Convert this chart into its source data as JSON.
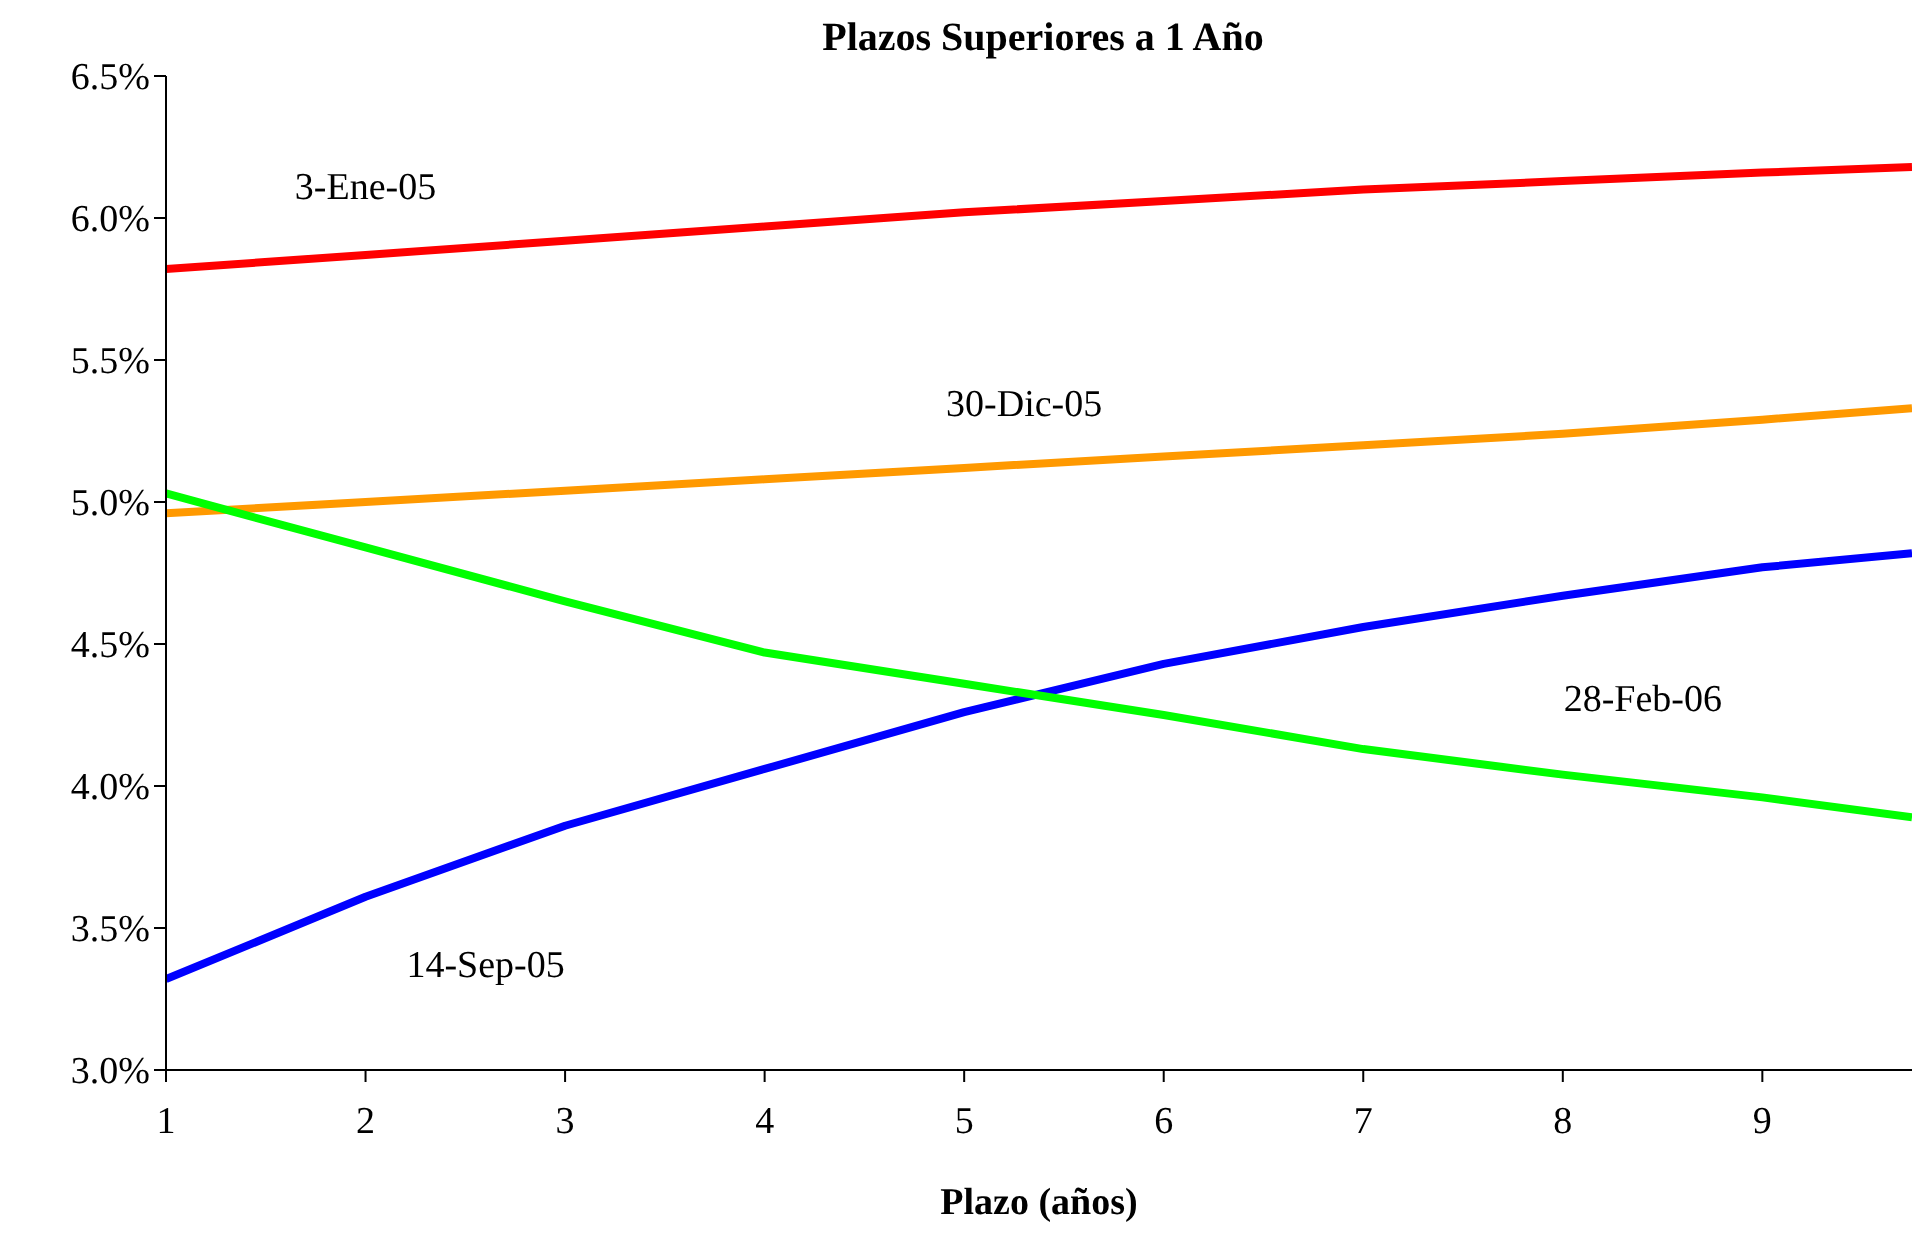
{
  "chart_data": {
    "type": "line",
    "title": "Plazos Superiores a 1 Año",
    "xlabel": "Plazo (años)",
    "x": [
      1,
      2,
      3,
      4,
      5,
      6,
      7,
      8,
      9,
      9.75
    ],
    "series": [
      {
        "name": "3-Ene-05",
        "color": "#ff0000",
        "values": [
          5.82,
          5.87,
          5.92,
          5.97,
          6.02,
          6.06,
          6.1,
          6.13,
          6.16,
          6.18
        ]
      },
      {
        "name": "30-Dic-05",
        "color": "#ff9900",
        "values": [
          4.96,
          5.0,
          5.04,
          5.08,
          5.12,
          5.16,
          5.2,
          5.24,
          5.29,
          5.33
        ]
      },
      {
        "name": "14-Sep-05",
        "color": "#0000ff",
        "values": [
          3.32,
          3.61,
          3.86,
          4.06,
          4.26,
          4.43,
          4.56,
          4.67,
          4.77,
          4.82
        ]
      },
      {
        "name": "28-Feb-06",
        "color": "#00ff00",
        "values": [
          5.03,
          4.84,
          4.65,
          4.47,
          4.36,
          4.25,
          4.13,
          4.04,
          3.96,
          3.89
        ]
      }
    ],
    "xlim": [
      1,
      9.75
    ],
    "xticks": [
      1,
      2,
      3,
      4,
      5,
      6,
      7,
      8,
      9
    ],
    "ylim": [
      3,
      6.5
    ],
    "yticks": [
      {
        "value": 3,
        "label": "3.0%"
      },
      {
        "value": 3.5,
        "label": "3.5%"
      },
      {
        "value": 4,
        "label": "4.0%"
      },
      {
        "value": 4.5,
        "label": "4.5%"
      },
      {
        "value": 5,
        "label": "5.0%"
      },
      {
        "value": 5.5,
        "label": "5.5%"
      },
      {
        "value": 6,
        "label": "6.0%"
      },
      {
        "value": 6.5,
        "label": "6.5%"
      }
    ],
    "grid": false,
    "legend": false,
    "marker": "none",
    "line_style": "solid"
  }
}
